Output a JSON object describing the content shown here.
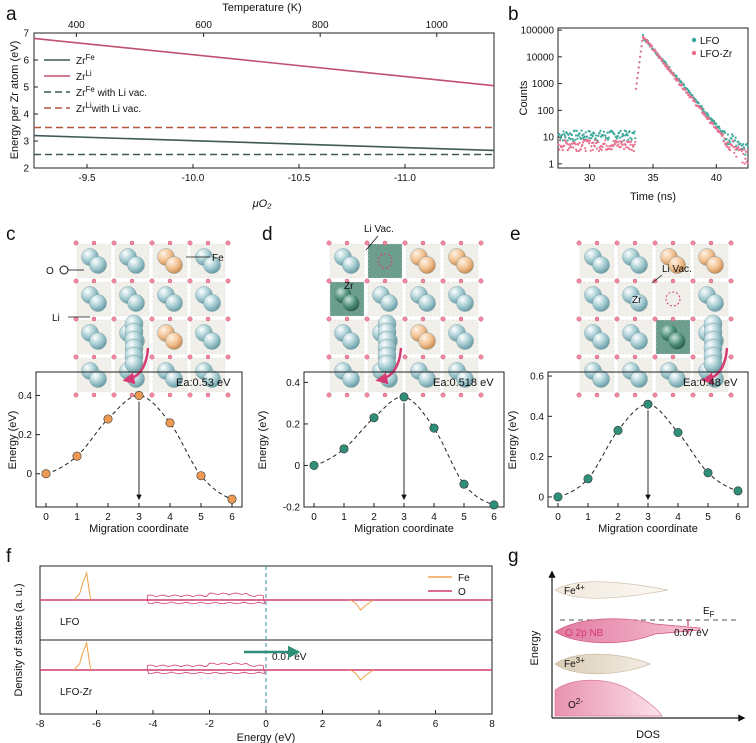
{
  "figure": {
    "panel_labels": [
      "a",
      "b",
      "c",
      "d",
      "e",
      "f",
      "g"
    ]
  },
  "chart_data": [
    {
      "id": "a",
      "type": "line",
      "xlabel": "μO₂",
      "ylabel": "Energy per Zr atom (eV)",
      "top_xlabel": "Temperature (K)",
      "xlim": [
        -9.25,
        -11.42
      ],
      "ylim": [
        2,
        7
      ],
      "x_ticks": [
        "-9.5",
        "-10.0",
        "-10.5",
        "-11.0"
      ],
      "x_tick_values": [
        -9.5,
        -10.0,
        -10.5,
        -11.0
      ],
      "y_ticks": [
        "2",
        "3",
        "4",
        "5",
        "6",
        "7"
      ],
      "top_ticks": [
        "400",
        "600",
        "800",
        "1000"
      ],
      "top_tick_values": [
        -9.45,
        -10.05,
        -10.6,
        -11.15
      ],
      "series": [
        {
          "name": "Zr",
          "sup": "Fe",
          "label_tail": "",
          "style": "solid",
          "color": "#3f5a57",
          "x": [
            -9.25,
            -11.42
          ],
          "y": [
            3.2,
            2.65
          ]
        },
        {
          "name": "Zr",
          "sup": "Li",
          "label_tail": "",
          "style": "solid",
          "color": "#c0506d",
          "x": [
            -9.25,
            -11.42
          ],
          "y": [
            6.8,
            5.05
          ]
        },
        {
          "name": "Zr",
          "sup": "Fe",
          "label_tail": " with Li vac.",
          "style": "dashed",
          "color": "#3f5a57",
          "x": [
            -9.25,
            -11.42
          ],
          "y": [
            2.5,
            2.5
          ]
        },
        {
          "name": "Zr",
          "sup": "Li",
          "label_tail": "with Li vac.",
          "style": "dashed",
          "color": "#b5553c",
          "x": [
            -9.25,
            -11.42
          ],
          "y": [
            3.5,
            3.5
          ]
        }
      ]
    },
    {
      "id": "b",
      "type": "scatter",
      "xlabel": "Time (ns)",
      "ylabel": "Counts",
      "xlim": [
        27.5,
        42.5
      ],
      "ylim_log": [
        0.7,
        120000
      ],
      "x_ticks": [
        "30",
        "35",
        "40"
      ],
      "y_ticks": [
        "1",
        "10",
        "100",
        "1000",
        "10000",
        "100000"
      ],
      "peak_time": 34.2,
      "peak_counts": 60000,
      "series": [
        {
          "name": "LFO",
          "color": "#3ba89a",
          "baseline": 11,
          "decay_ns": 0.75
        },
        {
          "name": "LFO-Zr",
          "color": "#e9718f",
          "baseline": 5,
          "decay_ns": 0.72
        }
      ]
    },
    {
      "id": "c",
      "type": "scatter",
      "xlabel": "Migration coordinate",
      "ylabel": "Energy (eV)",
      "annotation": "Ea:0.53 eV",
      "x": [
        0,
        1,
        2,
        3,
        4,
        5,
        6
      ],
      "y": [
        0.0,
        0.09,
        0.28,
        0.4,
        0.26,
        -0.01,
        -0.13
      ],
      "ylim": [
        -0.17,
        0.52
      ],
      "y_ticks": [
        "0",
        "0.2",
        "0.4"
      ],
      "y_tick_values": [
        0,
        0.2,
        0.4
      ],
      "x_ticks": [
        "0",
        "1",
        "2",
        "3",
        "4",
        "5",
        "6"
      ],
      "marker_color": "#ef9a52",
      "arrow_x": 3
    },
    {
      "id": "d",
      "type": "scatter",
      "xlabel": "Migration coordinate",
      "ylabel": "Energy (eV)",
      "annotation": "Ea:0.518 eV",
      "x": [
        0,
        1,
        2,
        3,
        4,
        5,
        6
      ],
      "y": [
        0.0,
        0.08,
        0.23,
        0.33,
        0.18,
        -0.09,
        -0.19
      ],
      "ylim": [
        -0.2,
        0.45
      ],
      "y_ticks": [
        "-0.2",
        "0",
        "0.2",
        "0.4"
      ],
      "y_tick_values": [
        -0.2,
        0,
        0.2,
        0.4
      ],
      "x_ticks": [
        "0",
        "1",
        "2",
        "3",
        "4",
        "5",
        "6"
      ],
      "marker_color": "#2f8e78",
      "arrow_x": 3
    },
    {
      "id": "e",
      "type": "scatter",
      "xlabel": "Migration coordinate",
      "ylabel": "Energy (eV)",
      "annotation": "Ea:0.48 eV",
      "x": [
        0,
        1,
        2,
        3,
        4,
        5,
        6
      ],
      "y": [
        0.0,
        0.09,
        0.33,
        0.46,
        0.32,
        0.12,
        0.03
      ],
      "ylim": [
        -0.05,
        0.62
      ],
      "y_ticks": [
        "0",
        "0.2",
        "0.4",
        "0.6"
      ],
      "y_tick_values": [
        0,
        0.2,
        0.4,
        0.6
      ],
      "x_ticks": [
        "0",
        "1",
        "2",
        "3",
        "4",
        "5",
        "6"
      ],
      "marker_color": "#2f8e78",
      "arrow_x": 3
    },
    {
      "id": "f",
      "type": "line",
      "xlabel": "Energy (eV)",
      "ylabel": "Density of states (a. u.)",
      "xlim": [
        -8,
        8
      ],
      "x_ticks": [
        "-8",
        "-6",
        "-4",
        "-2",
        "0",
        "2",
        "4",
        "6",
        "8"
      ],
      "x_tick_values": [
        -8,
        -6,
        -4,
        -2,
        0,
        2,
        4,
        6,
        8
      ],
      "legend": [
        {
          "name": "Fe",
          "color": "#f0a14a"
        },
        {
          "name": "O",
          "color": "#d23c6e"
        }
      ],
      "panels": [
        "LFO",
        "LFO-Zr"
      ],
      "shift_annotation": "0.07 eV",
      "fermi_line_x": 0
    }
  ],
  "structures": {
    "c": {
      "labels": {
        "o": "O",
        "fe": "Fe",
        "li": "Li"
      }
    },
    "d": {
      "labels": {
        "vac": "Li Vac.",
        "zr": "Zr"
      }
    },
    "e": {
      "labels": {
        "vac": "Li Vac.",
        "zr": "Zr"
      }
    }
  },
  "band_diagram": {
    "ylabel": "Energy",
    "xlabel": "DOS",
    "bands": [
      {
        "label": "Fe",
        "sup": "4+"
      },
      {
        "label": "O 2p NB",
        "sup": ""
      },
      {
        "label": "Fe",
        "sup": "3+"
      },
      {
        "label": "O",
        "sup": "2-"
      }
    ],
    "fermi_label": "E",
    "fermi_sub": "F",
    "gap_label": "0.07 eV",
    "colors": {
      "fe4": "#f4efe6",
      "o2pnb": "#e88fae",
      "fe3": "#e5dccd",
      "o2": "#e8a0b8",
      "accent": "#d63a72"
    }
  }
}
